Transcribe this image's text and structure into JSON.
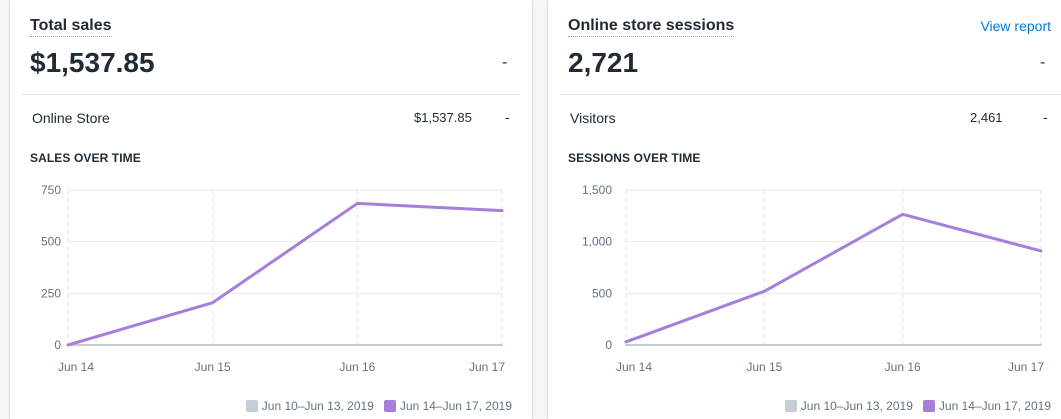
{
  "sales": {
    "title": "Total sales",
    "value": "$1,537.85",
    "value_change": "-",
    "breakdown": {
      "label": "Online Store",
      "value": "$1,537.85",
      "change": "-"
    },
    "chart_title": "SALES OVER TIME"
  },
  "sessions": {
    "title": "Online store sessions",
    "view_report": "View report",
    "value": "2,721",
    "value_change": "-",
    "breakdown": {
      "label": "Visitors",
      "value": "2,461",
      "change": "-"
    },
    "chart_title": "SESSIONS OVER TIME"
  },
  "legend": {
    "previous": "Jun 10–Jun 13, 2019",
    "current": "Jun 14–Jun 17, 2019"
  },
  "colors": {
    "current_series": "#a57fdb",
    "previous_series": "#c4cdd5",
    "link": "#007ace"
  },
  "chart_data": [
    {
      "type": "line",
      "title": "SALES OVER TIME",
      "categories": [
        "Jun 14",
        "Jun 15",
        "Jun 16",
        "Jun 17"
      ],
      "yticks": [
        "0",
        "250",
        "500",
        "750"
      ],
      "ylim": [
        0,
        750
      ],
      "grid": true,
      "legend_position": "bottom-right",
      "series": [
        {
          "name": "Jun 14–Jun 17, 2019",
          "values": [
            0,
            205,
            685,
            650
          ]
        },
        {
          "name": "Jun 10–Jun 13, 2019",
          "values": [
            0,
            0,
            0,
            0
          ]
        }
      ]
    },
    {
      "type": "line",
      "title": "SESSIONS OVER TIME",
      "categories": [
        "Jun 14",
        "Jun 15",
        "Jun 16",
        "Jun 17"
      ],
      "yticks": [
        "0",
        "500",
        "1,000",
        "1,500"
      ],
      "ylim": [
        0,
        1500
      ],
      "grid": true,
      "legend_position": "bottom-right",
      "series": [
        {
          "name": "Jun 14–Jun 17, 2019",
          "values": [
            30,
            520,
            1265,
            910
          ]
        },
        {
          "name": "Jun 10–Jun 13, 2019",
          "values": [
            0,
            0,
            0,
            0
          ]
        }
      ]
    }
  ]
}
